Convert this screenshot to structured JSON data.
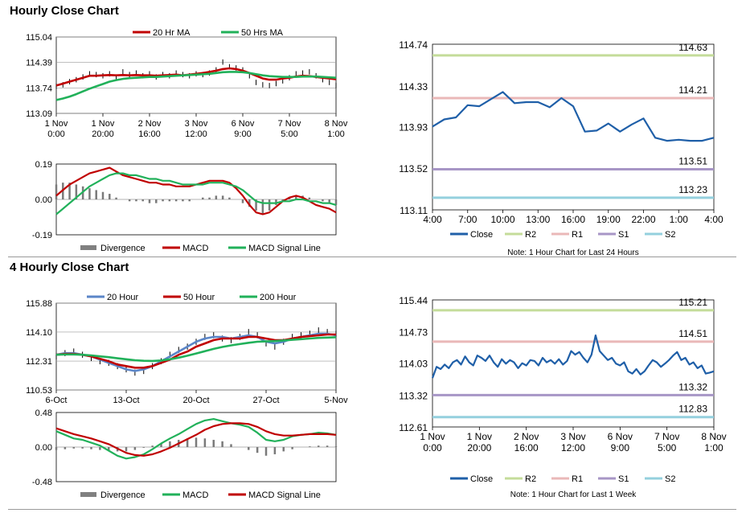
{
  "sections": [
    {
      "title": "Hourly Close Chart"
    },
    {
      "title": "4 Hourly Close Chart"
    }
  ],
  "colors": {
    "red": "#c00000",
    "green": "#21b15a",
    "blue": "#5b86c8",
    "navy": "#1f5fa8",
    "r2": "#c4dc9a",
    "r1": "#eab8b8",
    "s1": "#a796c6",
    "s2": "#94d0de",
    "gray": "#808080"
  },
  "chart_data": [
    {
      "id": "hourly_price",
      "type": "line",
      "ylim": [
        113.09,
        115.04
      ],
      "yticks": [
        "115.04",
        "114.39",
        "113.74",
        "113.09"
      ],
      "xticks": [
        [
          "1 Nov",
          "0:00"
        ],
        [
          "1 Nov",
          "20:00"
        ],
        [
          "2 Nov",
          "16:00"
        ],
        [
          "3 Nov",
          "12:00"
        ],
        [
          "6 Nov",
          "9:00"
        ],
        [
          "7 Nov",
          "5:00"
        ],
        [
          "8 Nov",
          "1:00"
        ]
      ],
      "legend": [
        {
          "name": "20 Hr MA",
          "color": "#c00000"
        },
        {
          "name": "50 Hrs MA",
          "color": "#21b15a"
        }
      ],
      "series": [
        {
          "name": "price",
          "kind": "bars",
          "values": [
            113.78,
            113.82,
            113.9,
            113.95,
            114.02,
            114.1,
            114.08,
            114.05,
            114.1,
            114.0,
            114.15,
            114.08,
            114.12,
            114.05,
            114.1,
            114.02,
            114.08,
            114.05,
            114.12,
            114.08,
            114.05,
            114.1,
            114.08,
            114.12,
            114.2,
            114.4,
            114.28,
            114.25,
            114.2,
            114.05,
            113.88,
            113.82,
            113.8,
            113.85,
            113.92,
            114.0,
            114.1,
            114.12,
            114.15,
            114.05,
            113.95,
            113.88,
            113.8
          ]
        },
        {
          "name": "20 Hr MA",
          "color": "#c00000",
          "values": [
            113.8,
            113.85,
            113.9,
            113.95,
            114.0,
            114.05,
            114.05,
            114.06,
            114.07,
            114.06,
            114.07,
            114.06,
            114.07,
            114.06,
            114.06,
            114.05,
            114.06,
            114.07,
            114.08,
            114.06,
            114.08,
            114.1,
            114.12,
            114.15,
            114.18,
            114.22,
            114.24,
            114.22,
            114.18,
            114.12,
            114.05,
            113.98,
            113.95,
            113.95,
            113.98,
            114.0,
            114.03,
            114.05,
            114.04,
            114.02,
            114.0,
            113.98,
            113.96
          ]
        },
        {
          "name": "50 Hrs MA",
          "color": "#21b15a",
          "values": [
            113.43,
            113.47,
            113.52,
            113.58,
            113.65,
            113.72,
            113.78,
            113.84,
            113.9,
            113.94,
            113.97,
            113.99,
            114.0,
            114.01,
            114.02,
            114.02,
            114.03,
            114.04,
            114.05,
            114.06,
            114.07,
            114.08,
            114.09,
            114.1,
            114.12,
            114.14,
            114.15,
            114.15,
            114.14,
            114.12,
            114.09,
            114.06,
            114.04,
            114.03,
            114.02,
            114.02,
            114.02,
            114.03,
            114.03,
            114.03,
            114.02,
            114.01,
            114.0
          ]
        }
      ]
    },
    {
      "id": "hourly_macd",
      "type": "line",
      "ylim": [
        -0.19,
        0.19
      ],
      "yticks": [
        "0.19",
        "0.00",
        "-0.19"
      ],
      "legend": [
        {
          "name": "Divergence",
          "color": "#808080"
        },
        {
          "name": "MACD",
          "color": "#c00000"
        },
        {
          "name": "MACD Signal Line",
          "color": "#21b15a"
        }
      ],
      "series": [
        {
          "name": "Divergence",
          "kind": "hist",
          "values": [
            0.08,
            0.09,
            0.09,
            0.08,
            0.07,
            0.06,
            0.05,
            0.04,
            0.03,
            0.01,
            0.0,
            -0.01,
            -0.01,
            -0.01,
            -0.02,
            -0.02,
            -0.01,
            -0.01,
            -0.01,
            -0.01,
            -0.01,
            0.0,
            0.01,
            0.01,
            0.02,
            0.02,
            0.01,
            0.0,
            -0.02,
            -0.04,
            -0.06,
            -0.08,
            -0.06,
            -0.03,
            -0.01,
            0.01,
            0.02,
            0.02,
            0.01,
            0.0,
            -0.01,
            -0.02,
            -0.03
          ]
        },
        {
          "name": "MACD",
          "color": "#c00000",
          "values": [
            0.02,
            0.05,
            0.08,
            0.1,
            0.12,
            0.14,
            0.15,
            0.16,
            0.17,
            0.15,
            0.13,
            0.12,
            0.11,
            0.1,
            0.09,
            0.09,
            0.08,
            0.08,
            0.07,
            0.07,
            0.07,
            0.08,
            0.09,
            0.1,
            0.1,
            0.1,
            0.09,
            0.06,
            0.02,
            -0.03,
            -0.07,
            -0.08,
            -0.07,
            -0.04,
            -0.01,
            0.01,
            0.02,
            0.01,
            -0.01,
            -0.03,
            -0.04,
            -0.05,
            -0.07
          ]
        },
        {
          "name": "MACD Signal Line",
          "color": "#21b15a",
          "values": [
            -0.08,
            -0.05,
            -0.02,
            0.01,
            0.04,
            0.07,
            0.09,
            0.11,
            0.13,
            0.14,
            0.14,
            0.13,
            0.13,
            0.12,
            0.11,
            0.11,
            0.1,
            0.1,
            0.09,
            0.08,
            0.08,
            0.08,
            0.08,
            0.09,
            0.09,
            0.09,
            0.08,
            0.07,
            0.05,
            0.02,
            -0.01,
            -0.02,
            -0.02,
            -0.02,
            -0.01,
            -0.01,
            0.0,
            0.0,
            -0.01,
            -0.01,
            -0.02,
            -0.02,
            -0.03
          ]
        }
      ]
    },
    {
      "id": "hourly_close",
      "type": "line",
      "ylim": [
        113.11,
        114.74
      ],
      "yticks": [
        "114.74",
        "114.33",
        "113.93",
        "113.52",
        "113.11"
      ],
      "xticks": [
        "4:00",
        "7:00",
        "10:00",
        "13:00",
        "16:00",
        "19:00",
        "22:00",
        "1:00",
        "4:00"
      ],
      "levels": [
        {
          "name": "R2",
          "value": 114.63,
          "label": "114.63",
          "color": "#c4dc9a"
        },
        {
          "name": "R1",
          "value": 114.21,
          "label": "114.21",
          "color": "#eab8b8"
        },
        {
          "name": "S1",
          "value": 113.51,
          "label": "113.51",
          "color": "#a796c6"
        },
        {
          "name": "S2",
          "value": 113.23,
          "label": "113.23",
          "color": "#94d0de"
        }
      ],
      "legend": [
        {
          "name": "Close",
          "color": "#1f5fa8"
        },
        {
          "name": "R2",
          "color": "#c4dc9a"
        },
        {
          "name": "R1",
          "color": "#eab8b8"
        },
        {
          "name": "S1",
          "color": "#a796c6"
        },
        {
          "name": "S2",
          "color": "#94d0de"
        }
      ],
      "note": "Note: 1 Hour Chart for Last 24 Hours",
      "series": [
        {
          "name": "Close",
          "color": "#1f5fa8",
          "values": [
            113.93,
            114.0,
            114.02,
            114.14,
            114.13,
            114.2,
            114.27,
            114.16,
            114.17,
            114.17,
            114.12,
            114.21,
            114.13,
            113.88,
            113.89,
            113.96,
            113.88,
            113.95,
            114.01,
            113.82,
            113.79,
            113.8,
            113.79,
            113.79,
            113.82
          ]
        }
      ]
    },
    {
      "id": "four_hourly_price",
      "type": "line",
      "ylim": [
        110.53,
        115.88
      ],
      "yticks": [
        "115.88",
        "114.10",
        "112.31",
        "110.53"
      ],
      "xticks": [
        "6-Oct",
        "13-Oct",
        "20-Oct",
        "27-Oct",
        "5-Nov"
      ],
      "legend": [
        {
          "name": "20 Hour",
          "color": "#5b86c8"
        },
        {
          "name": "50 Hour",
          "color": "#c00000"
        },
        {
          "name": "200 Hour",
          "color": "#21b15a"
        }
      ],
      "series": [
        {
          "name": "price",
          "kind": "bars",
          "values": [
            112.6,
            112.8,
            112.9,
            112.7,
            112.5,
            112.3,
            112.2,
            112.0,
            111.8,
            111.6,
            111.7,
            112.0,
            112.3,
            112.7,
            113.0,
            113.2,
            113.5,
            113.8,
            113.9,
            113.7,
            113.6,
            113.8,
            114.1,
            113.9,
            113.4,
            113.2,
            113.5,
            113.8,
            113.9,
            114.0,
            114.2,
            114.1,
            114.0
          ]
        },
        {
          "name": "20 Hour",
          "color": "#5b86c8",
          "values": [
            112.7,
            112.8,
            112.8,
            112.7,
            112.6,
            112.4,
            112.2,
            112.0,
            111.8,
            111.7,
            111.8,
            112.0,
            112.3,
            112.6,
            112.9,
            113.2,
            113.5,
            113.7,
            113.8,
            113.8,
            113.7,
            113.8,
            113.9,
            113.8,
            113.5,
            113.4,
            113.5,
            113.7,
            113.8,
            113.9,
            114.0,
            114.0,
            113.9
          ]
        },
        {
          "name": "50 Hour",
          "color": "#c00000",
          "values": [
            112.7,
            112.75,
            112.75,
            112.7,
            112.6,
            112.45,
            112.3,
            112.1,
            112.0,
            111.9,
            111.9,
            112.0,
            112.2,
            112.4,
            112.7,
            112.9,
            113.2,
            113.4,
            113.6,
            113.7,
            113.7,
            113.7,
            113.8,
            113.8,
            113.7,
            113.6,
            113.6,
            113.7,
            113.8,
            113.85,
            113.9,
            113.95,
            113.95
          ]
        },
        {
          "name": "200 Hour",
          "color": "#21b15a",
          "values": [
            112.7,
            112.72,
            112.72,
            112.7,
            112.66,
            112.6,
            112.55,
            112.48,
            112.42,
            112.36,
            112.33,
            112.32,
            112.35,
            112.42,
            112.52,
            112.64,
            112.78,
            112.92,
            113.06,
            113.18,
            113.28,
            113.36,
            113.44,
            113.5,
            113.52,
            113.54,
            113.58,
            113.62,
            113.66,
            113.7,
            113.74,
            113.76,
            113.78
          ]
        }
      ]
    },
    {
      "id": "four_hourly_macd",
      "type": "line",
      "ylim": [
        -0.48,
        0.48
      ],
      "yticks": [
        "0.48",
        "0.00",
        "-0.48"
      ],
      "legend": [
        {
          "name": "Divergence",
          "color": "#808080"
        },
        {
          "name": "MACD",
          "color": "#21b15a"
        },
        {
          "name": "MACD Signal Line",
          "color": "#c00000"
        }
      ],
      "series": [
        {
          "name": "Divergence",
          "kind": "hist",
          "values": [
            -0.04,
            -0.03,
            -0.02,
            -0.02,
            -0.03,
            -0.04,
            -0.05,
            -0.06,
            -0.06,
            -0.04,
            -0.01,
            0.02,
            0.05,
            0.08,
            0.1,
            0.12,
            0.13,
            0.12,
            0.1,
            0.08,
            0.04,
            0.0,
            -0.04,
            -0.08,
            -0.12,
            -0.1,
            -0.06,
            -0.03,
            0.0,
            0.01,
            0.02,
            0.02,
            0.01
          ]
        },
        {
          "name": "MACD",
          "color": "#21b15a",
          "values": [
            0.22,
            0.17,
            0.12,
            0.1,
            0.06,
            0.02,
            -0.05,
            -0.12,
            -0.16,
            -0.14,
            -0.1,
            -0.03,
            0.05,
            0.12,
            0.18,
            0.25,
            0.32,
            0.37,
            0.39,
            0.36,
            0.33,
            0.31,
            0.28,
            0.2,
            0.1,
            0.08,
            0.1,
            0.15,
            0.17,
            0.18,
            0.2,
            0.19,
            0.17
          ]
        },
        {
          "name": "MACD Signal Line",
          "color": "#c00000",
          "values": [
            0.26,
            0.22,
            0.18,
            0.15,
            0.12,
            0.08,
            0.04,
            -0.02,
            -0.08,
            -0.11,
            -0.12,
            -0.1,
            -0.06,
            -0.01,
            0.05,
            0.11,
            0.17,
            0.24,
            0.29,
            0.32,
            0.33,
            0.33,
            0.32,
            0.28,
            0.22,
            0.18,
            0.16,
            0.16,
            0.17,
            0.18,
            0.18,
            0.18,
            0.17
          ]
        }
      ]
    },
    {
      "id": "weekly_close",
      "type": "line",
      "ylim": [
        112.61,
        115.44
      ],
      "yticks": [
        "115.44",
        "114.73",
        "114.03",
        "113.32",
        "112.61"
      ],
      "xticks": [
        [
          "1 Nov",
          "0:00"
        ],
        [
          "1 Nov",
          "20:00"
        ],
        [
          "2 Nov",
          "16:00"
        ],
        [
          "3 Nov",
          "12:00"
        ],
        [
          "6 Nov",
          "9:00"
        ],
        [
          "7 Nov",
          "5:00"
        ],
        [
          "8 Nov",
          "1:00"
        ]
      ],
      "levels": [
        {
          "name": "R2",
          "value": 115.21,
          "label": "115.21",
          "color": "#c4dc9a"
        },
        {
          "name": "R1",
          "value": 114.51,
          "label": "114.51",
          "color": "#eab8b8"
        },
        {
          "name": "S1",
          "value": 113.32,
          "label": "113.32",
          "color": "#a796c6"
        },
        {
          "name": "S2",
          "value": 112.83,
          "label": "112.83",
          "color": "#94d0de"
        }
      ],
      "legend": [
        {
          "name": "Close",
          "color": "#1f5fa8"
        },
        {
          "name": "R2",
          "color": "#c4dc9a"
        },
        {
          "name": "R1",
          "color": "#eab8b8"
        },
        {
          "name": "S1",
          "color": "#a796c6"
        },
        {
          "name": "S2",
          "color": "#94d0de"
        }
      ],
      "note": "Note: 1 Hour Chart for Last 1 Week",
      "series": [
        {
          "name": "Close",
          "color": "#1f5fa8",
          "values": [
            113.7,
            113.95,
            113.9,
            114.0,
            113.92,
            114.05,
            114.1,
            114.0,
            114.18,
            114.05,
            113.98,
            114.2,
            114.15,
            114.08,
            114.2,
            114.05,
            113.95,
            114.12,
            114.02,
            114.1,
            114.05,
            113.92,
            114.03,
            113.98,
            114.1,
            114.08,
            113.98,
            114.15,
            114.05,
            114.1,
            114.02,
            114.12,
            114.0,
            114.08,
            114.3,
            114.22,
            114.28,
            114.15,
            114.05,
            114.22,
            114.65,
            114.3,
            114.2,
            114.1,
            114.15,
            114.02,
            113.98,
            114.05,
            113.85,
            113.8,
            113.9,
            113.78,
            113.85,
            113.98,
            114.1,
            114.05,
            113.95,
            114.02,
            114.1,
            114.2,
            114.28,
            114.1,
            114.15,
            114.0,
            114.05,
            113.92,
            113.98,
            113.8,
            113.82,
            113.85
          ]
        }
      ]
    }
  ]
}
